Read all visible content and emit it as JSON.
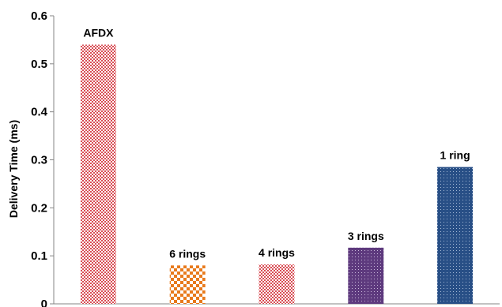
{
  "chart_data": {
    "type": "bar",
    "ylabel": "Delivery Time (ms)",
    "xlabel": "",
    "ylim": [
      0,
      0.6
    ],
    "yticks": [
      "0",
      "0.1",
      "0.2",
      "0.3",
      "0.4",
      "0.5",
      "0.6"
    ],
    "grid": false,
    "legend": "none",
    "categories": [
      "AFDX",
      "6 rings",
      "4 rings",
      "3 rings",
      "1 ring"
    ],
    "values": [
      0.54,
      0.08,
      0.082,
      0.117,
      0.285
    ],
    "bar_labels": [
      "AFDX",
      "6 rings",
      "4 rings",
      "3 rings",
      "1 ring"
    ],
    "bar_patterns": [
      "red-checker-fine",
      "orange-checker",
      "red-checker-fine",
      "purple-dots",
      "blue-dots"
    ],
    "colors": {
      "afdx": "#d84e55",
      "six_rings": "#e87a1c",
      "four_rings": "#d84e55",
      "three_rings": "#5e3a7e",
      "one_ring": "#284f86"
    }
  }
}
